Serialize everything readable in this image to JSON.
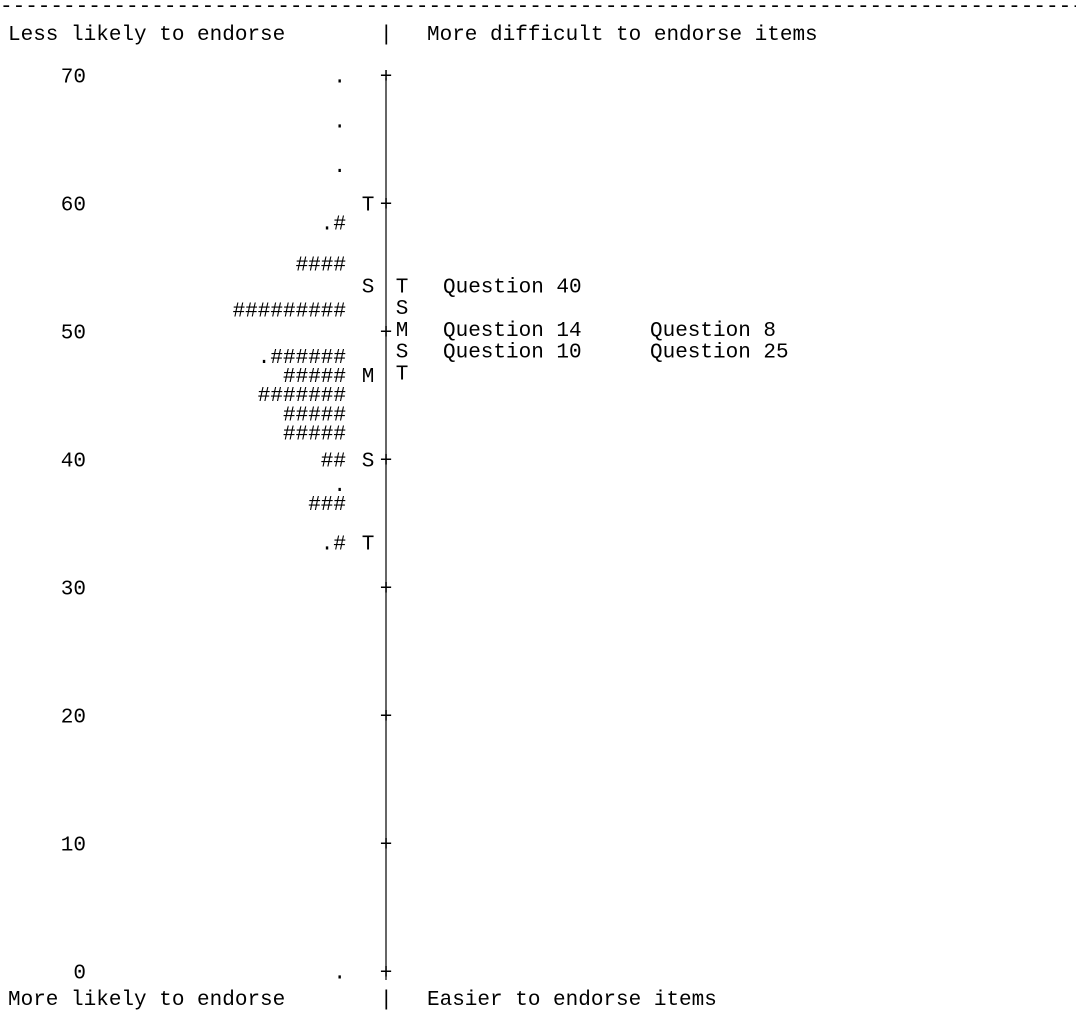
{
  "chart_data": {
    "type": "wright_map",
    "top_rule": "--------------------------------------------------------------------------------------------",
    "header": {
      "left": "Less likely to endorse",
      "right": "More difficult to endorse items"
    },
    "footer": {
      "left": "More likely to endorse",
      "right": "Easier to endorse items"
    },
    "axis": {
      "ylim": [
        0,
        70
      ],
      "ticks": [
        70,
        60,
        50,
        40,
        30,
        20,
        10,
        0
      ],
      "tick_mark": "+",
      "separator": "|"
    },
    "person_distribution": [
      {
        "y": 70,
        "symbols": "."
      },
      {
        "y": 66.5,
        "symbols": "."
      },
      {
        "y": 63,
        "symbols": "."
      },
      {
        "y": 58.5,
        "symbols": ".#"
      },
      {
        "y": 55.3,
        "symbols": "####"
      },
      {
        "y": 51.7,
        "symbols": "#########"
      },
      {
        "y": 48.1,
        "symbols": ".######"
      },
      {
        "y": 46.6,
        "symbols": "#####"
      },
      {
        "y": 45.1,
        "symbols": "#######"
      },
      {
        "y": 43.6,
        "symbols": "#####"
      },
      {
        "y": 42.1,
        "symbols": "#####"
      },
      {
        "y": 40.0,
        "symbols": "##"
      },
      {
        "y": 38.1,
        "symbols": "."
      },
      {
        "y": 36.6,
        "symbols": "###"
      },
      {
        "y": 33.5,
        "symbols": ".#"
      },
      {
        "y": 0,
        "symbols": "."
      }
    ],
    "person_markers": [
      {
        "y": 60.0,
        "label": "T"
      },
      {
        "y": 53.6,
        "label": "S"
      },
      {
        "y": 46.6,
        "label": "M"
      },
      {
        "y": 40.0,
        "label": "S"
      },
      {
        "y": 33.5,
        "label": "T"
      }
    ],
    "item_markers": [
      {
        "y": 53.6,
        "label": "T"
      },
      {
        "y": 51.9,
        "label": "S"
      },
      {
        "y": 50.2,
        "label": "M"
      },
      {
        "y": 48.5,
        "label": "S"
      },
      {
        "y": 46.8,
        "label": "T"
      }
    ],
    "items": [
      {
        "y": 53.6,
        "labels": [
          "Question 40"
        ]
      },
      {
        "y": 50.2,
        "labels": [
          "Question 14",
          "Question 8"
        ]
      },
      {
        "y": 48.5,
        "labels": [
          "Question 10",
          "Question 25"
        ]
      }
    ]
  }
}
